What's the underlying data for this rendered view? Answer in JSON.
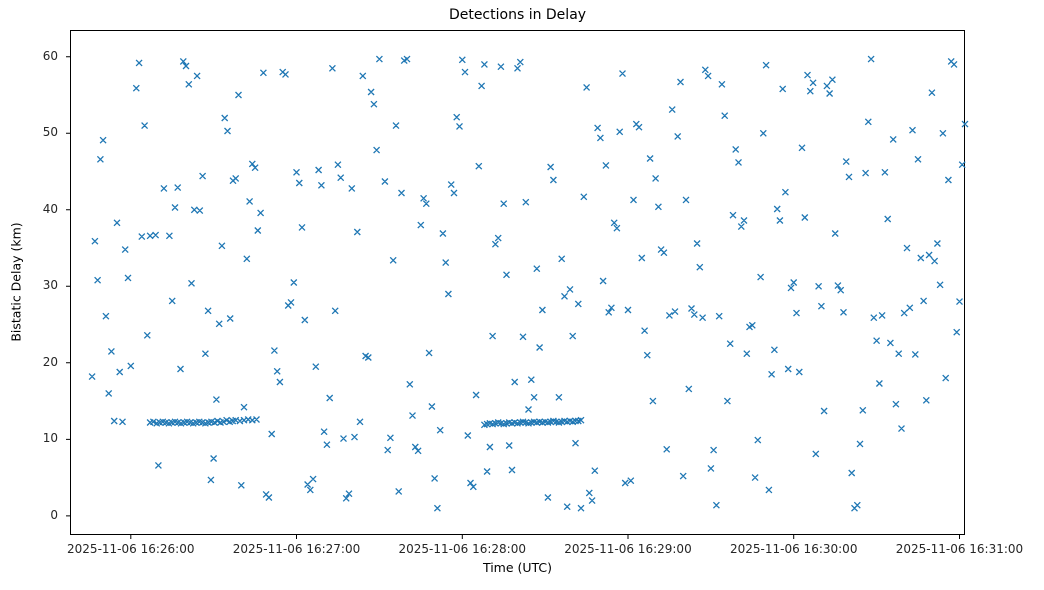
{
  "title": "Detections in Delay",
  "chart_data": {
    "type": "scatter",
    "title": "Detections in Delay",
    "xlabel": "Time (UTC)",
    "ylabel": "Bistatic Delay (km)",
    "marker": "x",
    "marker_color": "#1f77b4",
    "x_unit": "seconds after 2025-11-06 16:26:00 UTC",
    "xlim": [
      -22,
      302
    ],
    "ylim": [
      -2.5,
      63.5
    ],
    "x_ticks": [
      {
        "t": 0,
        "label": "2025-11-06 16:26:00"
      },
      {
        "t": 60,
        "label": "2025-11-06 16:27:00"
      },
      {
        "t": 120,
        "label": "2025-11-06 16:28:00"
      },
      {
        "t": 180,
        "label": "2025-11-06 16:29:00"
      },
      {
        "t": 240,
        "label": "2025-11-06 16:30:00"
      },
      {
        "t": 300,
        "label": "2025-11-06 16:31:00"
      }
    ],
    "y_ticks": [
      0,
      10,
      20,
      30,
      40,
      50,
      60
    ],
    "points": [
      [
        -14,
        18.2
      ],
      [
        -13,
        35.9
      ],
      [
        -12,
        30.8
      ],
      [
        -11,
        46.6
      ],
      [
        -10,
        49.1
      ],
      [
        -9,
        26.1
      ],
      [
        -8,
        16.0
      ],
      [
        -7,
        21.5
      ],
      [
        -6,
        12.4
      ],
      [
        -5,
        38.3
      ],
      [
        -4,
        18.8
      ],
      [
        -3,
        12.3
      ],
      [
        -2,
        34.8
      ],
      [
        -1,
        31.1
      ],
      [
        0,
        19.6
      ],
      [
        2,
        55.9
      ],
      [
        3,
        59.2
      ],
      [
        4,
        36.5
      ],
      [
        5,
        51.0
      ],
      [
        6,
        23.6
      ],
      [
        7,
        36.6
      ],
      [
        9,
        36.7
      ],
      [
        10,
        6.6
      ],
      [
        12,
        42.8
      ],
      [
        14,
        36.6
      ],
      [
        15,
        28.1
      ],
      [
        16,
        40.3
      ],
      [
        17,
        42.9
      ],
      [
        18,
        19.2
      ],
      [
        19,
        59.4
      ],
      [
        20,
        58.8
      ],
      [
        21,
        56.4
      ],
      [
        22,
        30.4
      ],
      [
        23,
        40.0
      ],
      [
        24,
        57.5
      ],
      [
        25,
        39.9
      ],
      [
        26,
        44.4
      ],
      [
        27,
        21.2
      ],
      [
        28,
        26.8
      ],
      [
        29,
        4.7
      ],
      [
        30,
        7.5
      ],
      [
        31,
        15.2
      ],
      [
        32,
        25.1
      ],
      [
        33,
        35.3
      ],
      [
        34,
        52.0
      ],
      [
        35,
        50.3
      ],
      [
        36,
        25.8
      ],
      [
        37,
        43.8
      ],
      [
        38,
        44.1
      ],
      [
        39,
        55.0
      ],
      [
        40,
        4.0
      ],
      [
        41,
        14.2
      ],
      [
        42,
        33.6
      ],
      [
        43,
        41.1
      ],
      [
        44,
        46.0
      ],
      [
        45,
        45.5
      ],
      [
        46,
        37.3
      ],
      [
        47,
        39.6
      ],
      [
        48,
        57.9
      ],
      [
        49,
        2.8
      ],
      [
        50,
        2.4
      ],
      [
        51,
        10.7
      ],
      [
        52,
        21.6
      ],
      [
        53,
        18.9
      ],
      [
        54,
        17.5
      ],
      [
        55,
        58.0
      ],
      [
        56,
        57.7
      ],
      [
        57,
        27.5
      ],
      [
        58,
        27.9
      ],
      [
        59,
        30.5
      ],
      [
        60,
        44.9
      ],
      [
        61,
        43.5
      ],
      [
        62,
        37.7
      ],
      [
        63,
        25.6
      ],
      [
        64,
        4.1
      ],
      [
        65,
        3.4
      ],
      [
        66,
        4.8
      ],
      [
        67,
        19.5
      ],
      [
        68,
        45.2
      ],
      [
        69,
        43.2
      ],
      [
        70,
        11.0
      ],
      [
        71,
        9.3
      ],
      [
        72,
        15.4
      ],
      [
        73,
        58.5
      ],
      [
        74,
        26.8
      ],
      [
        75,
        45.9
      ],
      [
        76,
        44.2
      ],
      [
        77,
        10.1
      ],
      [
        78,
        2.3
      ],
      [
        79,
        2.9
      ],
      [
        80,
        42.8
      ],
      [
        81,
        10.3
      ],
      [
        82,
        37.1
      ],
      [
        83,
        12.3
      ],
      [
        84,
        57.5
      ],
      [
        85,
        20.9
      ],
      [
        86,
        20.7
      ],
      [
        87,
        55.4
      ],
      [
        88,
        53.8
      ],
      [
        89,
        47.8
      ],
      [
        90,
        59.7
      ],
      [
        92,
        43.7
      ],
      [
        93,
        8.6
      ],
      [
        94,
        10.2
      ],
      [
        95,
        33.4
      ],
      [
        96,
        51.0
      ],
      [
        97,
        3.2
      ],
      [
        98,
        42.2
      ],
      [
        99,
        59.5
      ],
      [
        100,
        59.7
      ],
      [
        101,
        17.2
      ],
      [
        102,
        13.1
      ],
      [
        103,
        9.0
      ],
      [
        104,
        8.5
      ],
      [
        105,
        38.0
      ],
      [
        106,
        41.5
      ],
      [
        107,
        40.8
      ],
      [
        108,
        21.3
      ],
      [
        109,
        14.3
      ],
      [
        110,
        4.9
      ],
      [
        111,
        1.0
      ],
      [
        112,
        11.2
      ],
      [
        113,
        36.9
      ],
      [
        114,
        33.1
      ],
      [
        115,
        29.0
      ],
      [
        116,
        43.3
      ],
      [
        117,
        42.2
      ],
      [
        118,
        52.1
      ],
      [
        119,
        50.9
      ],
      [
        120,
        59.6
      ],
      [
        121,
        58.0
      ],
      [
        122,
        10.5
      ],
      [
        123,
        4.3
      ],
      [
        124,
        3.8
      ],
      [
        125,
        15.8
      ],
      [
        126,
        45.7
      ],
      [
        127,
        56.2
      ],
      [
        128,
        59.0
      ],
      [
        129,
        5.8
      ],
      [
        130,
        9.0
      ],
      [
        131,
        23.5
      ],
      [
        132,
        35.5
      ],
      [
        133,
        36.3
      ],
      [
        134,
        58.7
      ],
      [
        135,
        40.8
      ],
      [
        136,
        31.5
      ],
      [
        137,
        9.2
      ],
      [
        138,
        6.0
      ],
      [
        139,
        17.5
      ],
      [
        140,
        58.5
      ],
      [
        141,
        59.3
      ],
      [
        142,
        23.4
      ],
      [
        143,
        41.0
      ],
      [
        144,
        13.9
      ],
      [
        145,
        17.8
      ],
      [
        146,
        15.5
      ],
      [
        147,
        32.3
      ],
      [
        148,
        22.0
      ],
      [
        149,
        26.9
      ],
      [
        151,
        2.4
      ],
      [
        152,
        45.6
      ],
      [
        153,
        43.9
      ],
      [
        155,
        15.5
      ],
      [
        156,
        33.6
      ],
      [
        157,
        28.7
      ],
      [
        158,
        1.2
      ],
      [
        159,
        29.6
      ],
      [
        160,
        23.5
      ],
      [
        161,
        9.5
      ],
      [
        162,
        27.7
      ],
      [
        163,
        1.0
      ],
      [
        164,
        41.7
      ],
      [
        165,
        56.0
      ],
      [
        166,
        3.0
      ],
      [
        167,
        2.0
      ],
      [
        168,
        5.9
      ],
      [
        169,
        50.7
      ],
      [
        170,
        49.4
      ],
      [
        171,
        30.7
      ],
      [
        172,
        45.8
      ],
      [
        173,
        26.6
      ],
      [
        174,
        27.2
      ],
      [
        175,
        38.3
      ],
      [
        176,
        37.6
      ],
      [
        177,
        50.2
      ],
      [
        178,
        57.8
      ],
      [
        179,
        4.3
      ],
      [
        180,
        26.9
      ],
      [
        181,
        4.6
      ],
      [
        182,
        41.3
      ],
      [
        183,
        51.2
      ],
      [
        184,
        50.8
      ],
      [
        185,
        33.7
      ],
      [
        186,
        24.2
      ],
      [
        187,
        21.0
      ],
      [
        188,
        46.7
      ],
      [
        189,
        15.0
      ],
      [
        190,
        44.1
      ],
      [
        191,
        40.4
      ],
      [
        192,
        34.8
      ],
      [
        193,
        34.4
      ],
      [
        194,
        8.7
      ],
      [
        195,
        26.2
      ],
      [
        196,
        53.1
      ],
      [
        197,
        26.7
      ],
      [
        198,
        49.6
      ],
      [
        199,
        56.7
      ],
      [
        200,
        5.2
      ],
      [
        201,
        41.3
      ],
      [
        202,
        16.6
      ],
      [
        203,
        27.1
      ],
      [
        204,
        26.3
      ],
      [
        205,
        35.6
      ],
      [
        206,
        32.5
      ],
      [
        207,
        25.9
      ],
      [
        208,
        58.3
      ],
      [
        209,
        57.5
      ],
      [
        210,
        6.2
      ],
      [
        211,
        8.6
      ],
      [
        212,
        1.4
      ],
      [
        213,
        26.1
      ],
      [
        214,
        56.4
      ],
      [
        215,
        52.3
      ],
      [
        216,
        15.0
      ],
      [
        217,
        22.5
      ],
      [
        218,
        39.3
      ],
      [
        219,
        47.9
      ],
      [
        220,
        46.2
      ],
      [
        221,
        37.8
      ],
      [
        222,
        38.6
      ],
      [
        223,
        21.2
      ],
      [
        224,
        24.7
      ],
      [
        225,
        24.9
      ],
      [
        226,
        5.0
      ],
      [
        227,
        9.9
      ],
      [
        228,
        31.2
      ],
      [
        229,
        50.0
      ],
      [
        230,
        58.9
      ],
      [
        231,
        3.4
      ],
      [
        232,
        18.5
      ],
      [
        233,
        21.7
      ],
      [
        234,
        40.1
      ],
      [
        235,
        38.6
      ],
      [
        236,
        55.8
      ],
      [
        237,
        42.3
      ],
      [
        238,
        19.2
      ],
      [
        239,
        29.8
      ],
      [
        240,
        30.5
      ],
      [
        241,
        26.5
      ],
      [
        242,
        18.8
      ],
      [
        243,
        48.1
      ],
      [
        244,
        39.0
      ],
      [
        245,
        57.6
      ],
      [
        246,
        55.5
      ],
      [
        247,
        56.6
      ],
      [
        248,
        8.1
      ],
      [
        249,
        30.0
      ],
      [
        250,
        27.4
      ],
      [
        251,
        13.7
      ],
      [
        252,
        56.2
      ],
      [
        253,
        55.2
      ],
      [
        254,
        57.0
      ],
      [
        255,
        36.9
      ],
      [
        256,
        30.1
      ],
      [
        257,
        29.5
      ],
      [
        258,
        26.6
      ],
      [
        259,
        46.3
      ],
      [
        260,
        44.3
      ],
      [
        261,
        5.6
      ],
      [
        262,
        1.0
      ],
      [
        263,
        1.4
      ],
      [
        264,
        9.4
      ],
      [
        265,
        13.8
      ],
      [
        266,
        44.8
      ],
      [
        267,
        51.5
      ],
      [
        268,
        59.7
      ],
      [
        269,
        25.9
      ],
      [
        270,
        22.9
      ],
      [
        271,
        17.3
      ],
      [
        272,
        26.2
      ],
      [
        273,
        44.9
      ],
      [
        274,
        38.8
      ],
      [
        275,
        22.6
      ],
      [
        276,
        49.2
      ],
      [
        277,
        14.6
      ],
      [
        278,
        21.2
      ],
      [
        279,
        11.4
      ],
      [
        280,
        26.5
      ],
      [
        281,
        35.0
      ],
      [
        282,
        27.2
      ],
      [
        283,
        50.4
      ],
      [
        284,
        21.1
      ],
      [
        285,
        46.6
      ],
      [
        286,
        33.7
      ],
      [
        287,
        28.1
      ],
      [
        288,
        15.1
      ],
      [
        289,
        34.1
      ],
      [
        290,
        55.3
      ],
      [
        291,
        33.3
      ],
      [
        292,
        35.6
      ],
      [
        293,
        30.2
      ],
      [
        294,
        50.0
      ],
      [
        295,
        18.0
      ],
      [
        296,
        43.9
      ],
      [
        297,
        59.4
      ],
      [
        298,
        59.0
      ],
      [
        299,
        24.0
      ],
      [
        300,
        28.0
      ],
      [
        301,
        45.9
      ],
      [
        302,
        51.2
      ],
      [
        7,
        12.2
      ],
      [
        8.2,
        12.3
      ],
      [
        9.4,
        12.1
      ],
      [
        10.5,
        12.2
      ],
      [
        11.6,
        12.3
      ],
      [
        12.7,
        12.2
      ],
      [
        13.8,
        12.1
      ],
      [
        14.9,
        12.2
      ],
      [
        16,
        12.3
      ],
      [
        17.1,
        12.2
      ],
      [
        18.2,
        12.1
      ],
      [
        19.3,
        12.2
      ],
      [
        20.4,
        12.3
      ],
      [
        21.5,
        12.2
      ],
      [
        22.6,
        12.1
      ],
      [
        23.7,
        12.2
      ],
      [
        24.8,
        12.3
      ],
      [
        25.9,
        12.2
      ],
      [
        27,
        12.1
      ],
      [
        28.1,
        12.2
      ],
      [
        29.2,
        12.3
      ],
      [
        30.3,
        12.2
      ],
      [
        31.4,
        12.4
      ],
      [
        32.5,
        12.2
      ],
      [
        33.6,
        12.3
      ],
      [
        34.7,
        12.5
      ],
      [
        35.8,
        12.3
      ],
      [
        36.9,
        12.4
      ],
      [
        38,
        12.5
      ],
      [
        39.5,
        12.4
      ],
      [
        41,
        12.5
      ],
      [
        42.5,
        12.6
      ],
      [
        44,
        12.5
      ],
      [
        45.5,
        12.6
      ],
      [
        128,
        11.9
      ],
      [
        129,
        12.0
      ],
      [
        130,
        12.1
      ],
      [
        131,
        12.0
      ],
      [
        132,
        12.1
      ],
      [
        133,
        12.2
      ],
      [
        134,
        12.1
      ],
      [
        135,
        12.0
      ],
      [
        136,
        12.1
      ],
      [
        137,
        12.2
      ],
      [
        138,
        12.1
      ],
      [
        139,
        12.2
      ],
      [
        140,
        12.1
      ],
      [
        141,
        12.2
      ],
      [
        142,
        12.3
      ],
      [
        143,
        12.2
      ],
      [
        144,
        12.1
      ],
      [
        145,
        12.2
      ],
      [
        146,
        12.3
      ],
      [
        147,
        12.2
      ],
      [
        148,
        12.3
      ],
      [
        149,
        12.2
      ],
      [
        150,
        12.3
      ],
      [
        151,
        12.2
      ],
      [
        152,
        12.3
      ],
      [
        153,
        12.4
      ],
      [
        154,
        12.3
      ],
      [
        155,
        12.2
      ],
      [
        156,
        12.3
      ],
      [
        157,
        12.4
      ],
      [
        158,
        12.3
      ],
      [
        159,
        12.4
      ],
      [
        160,
        12.3
      ],
      [
        161,
        12.4
      ],
      [
        162,
        12.4
      ],
      [
        163,
        12.5
      ]
    ]
  }
}
